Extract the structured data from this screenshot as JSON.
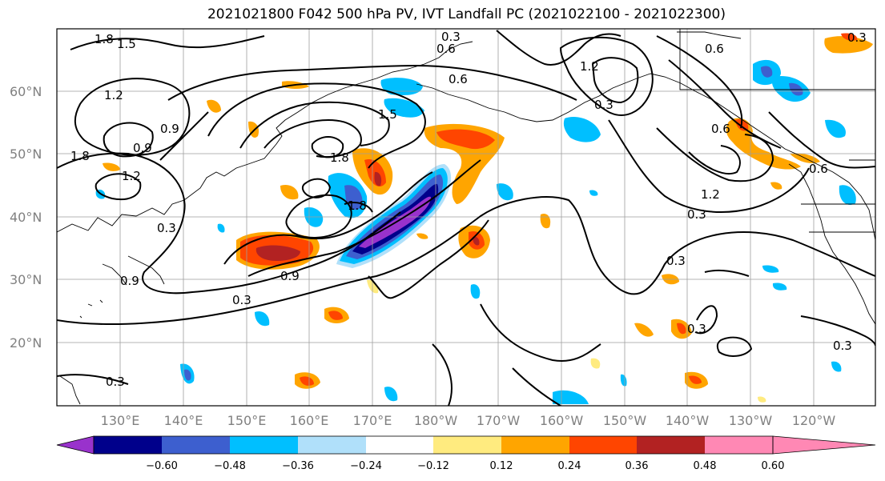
{
  "title": "2021021800 F042 500 hPa PV, IVT Landfall PC (2021022100 - 2021022300)",
  "lat_labels": [
    "60°N",
    "50°N",
    "40°N",
    "30°N",
    "20°N"
  ],
  "lon_labels": [
    "130°E",
    "140°E",
    "150°E",
    "160°E",
    "170°E",
    "180°W",
    "170°W",
    "160°W",
    "150°W",
    "140°W",
    "130°W",
    "120°W"
  ],
  "contour_labels": [
    "1.8",
    "1.5",
    "0.3",
    "0.6",
    "0.6",
    "1.2",
    "0.9",
    "0.9",
    "1.2",
    "1.8",
    "1.8",
    "1.5",
    "1.8",
    "0.3",
    "0.9",
    "0.3",
    "0.9",
    "0.3",
    "0.3",
    "1.2",
    "0.6",
    "0.6",
    "0.6",
    "1.2",
    "0.3",
    "0.3",
    "0.3",
    "0.3",
    "0.3"
  ],
  "colorbar": {
    "colors": [
      "#9932cc",
      "#00008b",
      "#3d5fcf",
      "#00bfff",
      "#b0e0fa",
      "#ffffff",
      "#ffeb7f",
      "#ffa500",
      "#ff4500",
      "#b22222",
      "#ff88b4"
    ],
    "tick_labels": [
      "−0.60",
      "−0.48",
      "−0.36",
      "−0.24",
      "−0.12",
      "0.12",
      "0.24",
      "0.36",
      "0.48",
      "0.60"
    ]
  }
}
